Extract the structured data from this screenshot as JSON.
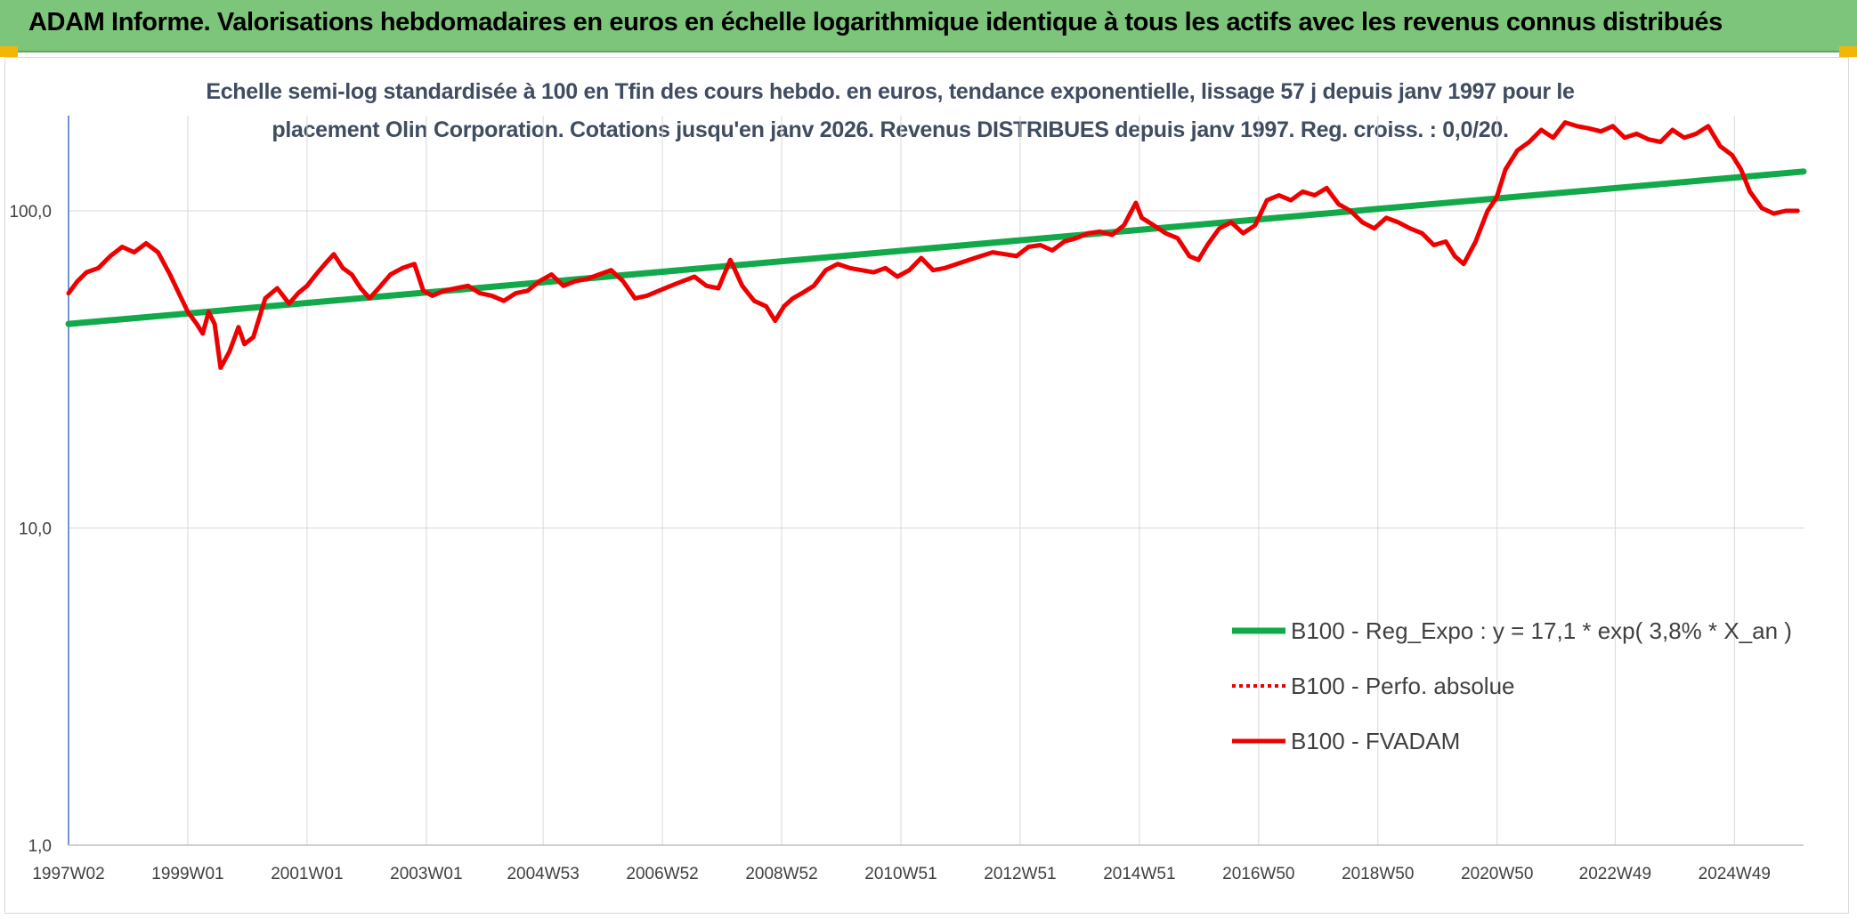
{
  "header": {
    "title": "ADAM Informe. Valorisations hebdomadaires en euros en échelle logarithmique identique à tous les actifs avec les revenus connus distribués"
  },
  "colors": {
    "header_bg": "#7dc57a",
    "corner_accent": "#f2b705",
    "trend": "#12a94a",
    "fvadam": "#ee0000",
    "perfo": "#ee0000",
    "grid": "#d9d9d9",
    "text": "#404c60"
  },
  "chart_data": {
    "type": "line",
    "title_line1": "Echelle semi-log standardisée à 100 en Tfin des cours hebdo. en euros, tendance exponentielle, lissage 57 j depuis janv 1997 pour le",
    "title_line2": "placement Olin Corporation. Cotations jusqu'en janv 2026. Revenus DISTRIBUES depuis janv 1997. Reg. croiss. : 0,0/20.",
    "y_scale": "log",
    "ylim": [
      1,
      200
    ],
    "y_ticks": [
      1,
      10,
      100
    ],
    "y_tick_labels": [
      "1,0",
      "10,0",
      "100,0"
    ],
    "xlim": [
      1997.0,
      2026.1
    ],
    "x_ticks": [
      1997.0,
      1999.0,
      2001.0,
      2003.0,
      2004.96,
      2006.96,
      2008.96,
      2010.96,
      2012.96,
      2014.96,
      2016.96,
      2018.96,
      2020.96,
      2022.94,
      2024.94
    ],
    "x_tick_labels": [
      "1997W02",
      "1999W01",
      "2001W01",
      "2003W01",
      "2004W53",
      "2006W52",
      "2008W52",
      "2010W51",
      "2012W51",
      "2014W51",
      "2016W50",
      "2018W50",
      "2020W50",
      "2022W49",
      "2024W49"
    ],
    "grid": "vertical at category ticks, horizontal at decades",
    "legend_position": "lower-right",
    "series": [
      {
        "name": "B100 - Reg_Expo : y = 17,1 * exp( 3,8% *  X_an )",
        "style": "solid-thick",
        "color": "#12a94a",
        "x": [
          1997.0,
          2026.1
        ],
        "y": [
          44,
          133
        ]
      },
      {
        "name": "B100 - Perfo. absolue",
        "style": "dotted",
        "color": "#ee0000",
        "x": [],
        "y": []
      },
      {
        "name": "B100 - FVADAM",
        "style": "solid",
        "color": "#ee0000",
        "x": [
          1997.0,
          1997.15,
          1997.3,
          1997.5,
          1997.7,
          1997.9,
          1998.1,
          1998.3,
          1998.5,
          1998.7,
          1998.85,
          1999.0,
          1999.15,
          1999.25,
          1999.35,
          1999.45,
          1999.55,
          1999.7,
          1999.85,
          1999.95,
          2000.1,
          2000.3,
          2000.5,
          2000.7,
          2000.85,
          2001.0,
          2001.15,
          2001.3,
          2001.45,
          2001.6,
          2001.75,
          2001.9,
          2002.05,
          2002.2,
          2002.4,
          2002.6,
          2002.8,
          2002.95,
          2003.1,
          2003.3,
          2003.5,
          2003.7,
          2003.9,
          2004.1,
          2004.3,
          2004.5,
          2004.7,
          2004.9,
          2005.1,
          2005.3,
          2005.5,
          2005.7,
          2005.9,
          2006.1,
          2006.3,
          2006.5,
          2006.7,
          2006.9,
          2007.1,
          2007.3,
          2007.5,
          2007.7,
          2007.9,
          2008.1,
          2008.3,
          2008.5,
          2008.7,
          2008.85,
          2009.0,
          2009.15,
          2009.3,
          2009.5,
          2009.7,
          2009.9,
          2010.1,
          2010.3,
          2010.5,
          2010.7,
          2010.9,
          2011.1,
          2011.3,
          2011.5,
          2011.7,
          2011.9,
          2012.1,
          2012.3,
          2012.5,
          2012.7,
          2012.9,
          2013.1,
          2013.3,
          2013.5,
          2013.7,
          2013.9,
          2014.1,
          2014.3,
          2014.5,
          2014.7,
          2014.9,
          2015.0,
          2015.2,
          2015.4,
          2015.6,
          2015.8,
          2015.95,
          2016.1,
          2016.3,
          2016.5,
          2016.7,
          2016.9,
          2017.1,
          2017.3,
          2017.5,
          2017.7,
          2017.9,
          2018.1,
          2018.3,
          2018.5,
          2018.7,
          2018.9,
          2019.1,
          2019.3,
          2019.5,
          2019.7,
          2019.9,
          2020.1,
          2020.25,
          2020.4,
          2020.6,
          2020.8,
          2020.95,
          2021.1,
          2021.3,
          2021.5,
          2021.7,
          2021.9,
          2022.1,
          2022.3,
          2022.5,
          2022.7,
          2022.9,
          2023.1,
          2023.3,
          2023.5,
          2023.7,
          2023.9,
          2024.1,
          2024.3,
          2024.5,
          2024.7,
          2024.9,
          2025.05,
          2025.2,
          2025.4,
          2025.6,
          2025.8,
          2026.0
        ],
        "y": [
          55,
          60,
          64,
          66,
          72,
          77,
          74,
          79,
          74,
          63,
          55,
          48,
          44,
          41,
          48,
          44,
          32,
          36,
          43,
          38,
          40,
          53,
          57,
          51,
          55,
          58,
          63,
          68,
          73,
          66,
          63,
          57,
          53,
          57,
          63,
          66,
          68,
          56,
          54,
          56,
          57,
          58,
          55,
          54,
          52,
          55,
          56,
          60,
          63,
          58,
          60,
          61,
          63,
          65,
          60,
          53,
          54,
          56,
          58,
          60,
          62,
          58,
          57,
          70,
          58,
          52,
          50,
          45,
          50,
          53,
          55,
          58,
          65,
          68,
          66,
          65,
          64,
          66,
          62,
          65,
          71,
          65,
          66,
          68,
          70,
          72,
          74,
          73,
          72,
          77,
          78,
          75,
          80,
          82,
          85,
          86,
          84,
          90,
          106,
          95,
          90,
          85,
          82,
          72,
          70,
          78,
          88,
          92,
          85,
          90,
          108,
          112,
          108,
          115,
          112,
          118,
          105,
          100,
          92,
          88,
          95,
          92,
          88,
          85,
          78,
          80,
          72,
          68,
          80,
          100,
          110,
          135,
          155,
          165,
          180,
          170,
          190,
          185,
          182,
          178,
          185,
          170,
          175,
          168,
          165,
          180,
          170,
          175,
          185,
          160,
          150,
          135,
          115,
          102,
          98,
          100,
          100
        ]
      }
    ]
  }
}
